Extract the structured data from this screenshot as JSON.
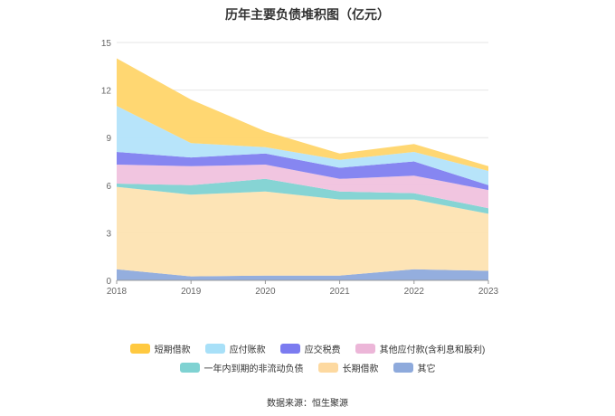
{
  "chart_data": {
    "type": "area",
    "stacked": true,
    "title": "历年主要负债堆积图（亿元）",
    "x": [
      "2018",
      "2019",
      "2020",
      "2021",
      "2022",
      "2023"
    ],
    "ylim": [
      0,
      15
    ],
    "yticks": [
      "0",
      "3",
      "6",
      "9",
      "12",
      "15"
    ],
    "grid": true,
    "legend_position": "bottom",
    "series": [
      {
        "name": "其它",
        "color": "#8eaadc",
        "values": [
          0.7,
          0.25,
          0.3,
          0.3,
          0.7,
          0.6
        ]
      },
      {
        "name": "长期借款",
        "color": "#fde3b2",
        "values": [
          5.2,
          5.15,
          5.3,
          4.8,
          4.4,
          3.6
        ]
      },
      {
        "name": "一年内到期的非流动负债",
        "color": "#7fd2d2",
        "values": [
          0.2,
          0.6,
          0.8,
          0.5,
          0.4,
          0.35
        ]
      },
      {
        "name": "其他应付款(含利息和股利)",
        "color": "#f0c2de",
        "values": [
          1.2,
          1.2,
          0.9,
          0.8,
          1.1,
          1.15
        ]
      },
      {
        "name": "应交税费",
        "color": "#8080f0",
        "values": [
          0.8,
          0.55,
          0.7,
          0.7,
          0.9,
          0.3
        ]
      },
      {
        "name": "应付账款",
        "color": "#b3e3fa",
        "values": [
          2.9,
          0.9,
          0.4,
          0.5,
          0.6,
          0.9
        ]
      },
      {
        "name": "短期借款",
        "color": "#ffd56a",
        "values": [
          3.0,
          2.75,
          1.0,
          0.4,
          0.5,
          0.3
        ]
      }
    ]
  },
  "legend": {
    "row1": [
      {
        "label": "短期借款",
        "color": "#ffc940"
      },
      {
        "label": "应付账款",
        "color": "#a8e0f8"
      },
      {
        "label": "应交税费",
        "color": "#7b7bf0"
      },
      {
        "label": "其他应付款(含利息和股利)",
        "color": "#ecb6d8"
      }
    ],
    "row2": [
      {
        "label": "一年内到期的非流动负债",
        "color": "#7fd2d2"
      },
      {
        "label": "长期借款",
        "color": "#fdd9a0"
      },
      {
        "label": "其它",
        "color": "#8eaadc"
      }
    ]
  },
  "source": "数据来源：恒生聚源"
}
